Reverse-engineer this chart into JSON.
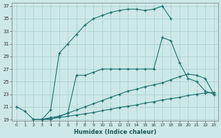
{
  "xlabel": "Humidex (Indice chaleur)",
  "xlim": [
    -0.5,
    23.5
  ],
  "ylim": [
    18.8,
    37.5
  ],
  "xticks": [
    0,
    1,
    2,
    3,
    4,
    5,
    6,
    7,
    8,
    9,
    10,
    11,
    12,
    13,
    14,
    15,
    16,
    17,
    18,
    19,
    20,
    21,
    22,
    23
  ],
  "yticks": [
    19,
    21,
    23,
    25,
    27,
    29,
    31,
    33,
    35,
    37
  ],
  "bg_color": "#cce8e8",
  "grid_color": "#aacccc",
  "line_color": "#1a6e6e",
  "line1_x": [
    0,
    1,
    2,
    3,
    4,
    5,
    6,
    7,
    8,
    9,
    10,
    11,
    12,
    13,
    14,
    15,
    16,
    17,
    18
  ],
  "line1_y": [
    21.0,
    20.3,
    19.0,
    19.0,
    20.5,
    29.5,
    31.0,
    32.5,
    34.0,
    35.0,
    35.5,
    36.0,
    36.3,
    36.5,
    36.5,
    36.3,
    36.5,
    37.0,
    35.0
  ],
  "line2_x": [
    2,
    3,
    4,
    5,
    6,
    7,
    8,
    9,
    10,
    11,
    12,
    13,
    14,
    15,
    16,
    17,
    18,
    19,
    20,
    21,
    22,
    23
  ],
  "line2_y": [
    19.0,
    19.0,
    19.3,
    19.5,
    20.0,
    26.0,
    26.0,
    26.5,
    27.0,
    27.0,
    27.0,
    27.0,
    27.0,
    27.0,
    27.0,
    32.0,
    31.5,
    28.0,
    25.5,
    25.0,
    23.5,
    23.0
  ],
  "line3_x": [
    3,
    4,
    5,
    6,
    7,
    8,
    9,
    10,
    11,
    12,
    13,
    14,
    15,
    16,
    17,
    18,
    19,
    20,
    21,
    22,
    23
  ],
  "line3_y": [
    19.0,
    19.0,
    19.5,
    20.0,
    20.5,
    21.0,
    21.5,
    22.0,
    22.5,
    23.0,
    23.5,
    23.8,
    24.2,
    24.5,
    24.8,
    25.3,
    25.8,
    26.2,
    26.0,
    25.5,
    23.0
  ],
  "line4_x": [
    3,
    4,
    5,
    6,
    7,
    8,
    9,
    10,
    11,
    12,
    13,
    14,
    15,
    16,
    17,
    18,
    19,
    20,
    21,
    22,
    23
  ],
  "line4_y": [
    19.0,
    19.1,
    19.3,
    19.5,
    19.7,
    19.9,
    20.1,
    20.4,
    20.6,
    20.9,
    21.1,
    21.3,
    21.6,
    21.8,
    22.1,
    22.3,
    22.5,
    22.8,
    23.0,
    23.2,
    23.3
  ]
}
